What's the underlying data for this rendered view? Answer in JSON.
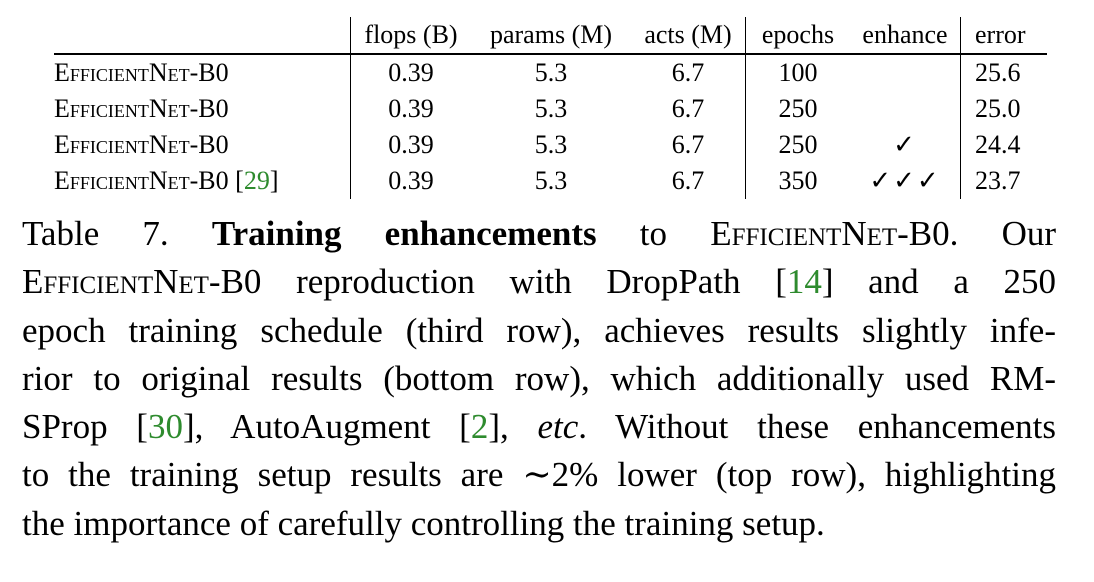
{
  "table": {
    "headers": {
      "flops": "flops (B)",
      "params": "params (M)",
      "acts": "acts (M)",
      "epochs": "epochs",
      "enhance": "enhance",
      "error": "error"
    },
    "rows": [
      {
        "model": "EfficientNet-B0",
        "cite": "",
        "flops": "0.39",
        "params": "5.3",
        "acts": "6.7",
        "epochs": "100",
        "enhance": "",
        "error": "25.6"
      },
      {
        "model": "EfficientNet-B0",
        "cite": "",
        "flops": "0.39",
        "params": "5.3",
        "acts": "6.7",
        "epochs": "250",
        "enhance": "",
        "error": "25.0"
      },
      {
        "model": "EfficientNet-B0",
        "cite": "",
        "flops": "0.39",
        "params": "5.3",
        "acts": "6.7",
        "epochs": "250",
        "enhance": "✓",
        "error": "24.4"
      },
      {
        "model": "EfficientNet-B0",
        "cite": "29",
        "flops": "0.39",
        "params": "5.3",
        "acts": "6.7",
        "epochs": "350",
        "enhance": "✓✓✓",
        "error": "23.7"
      }
    ]
  },
  "caption": {
    "label": "Table 7.",
    "bold_title": "Training enhancements",
    "l1_a": " to ",
    "l1_model": "EfficientNet-B0",
    "l1_b": ".  Our",
    "l2_model": "EfficientNet-B0",
    "l2_a": " reproduction with DropPath [",
    "cite_14": "14",
    "l2_b": "] and a 250",
    "l3": "epoch training schedule (third row), achieves results slightly infe-",
    "l4": "rior to original results (bottom row), which additionally used RM-",
    "l5_a": "SProp [",
    "cite_30": "30",
    "l5_b": "], AutoAugment [",
    "cite_2": "2",
    "l5_c": "], ",
    "l5_etc": "etc",
    "l5_d": ".  Without these enhancements",
    "l6": "to the training setup results are ∼2% lower (top row), highlighting",
    "l7": "the importance of carefully controlling the training setup."
  }
}
